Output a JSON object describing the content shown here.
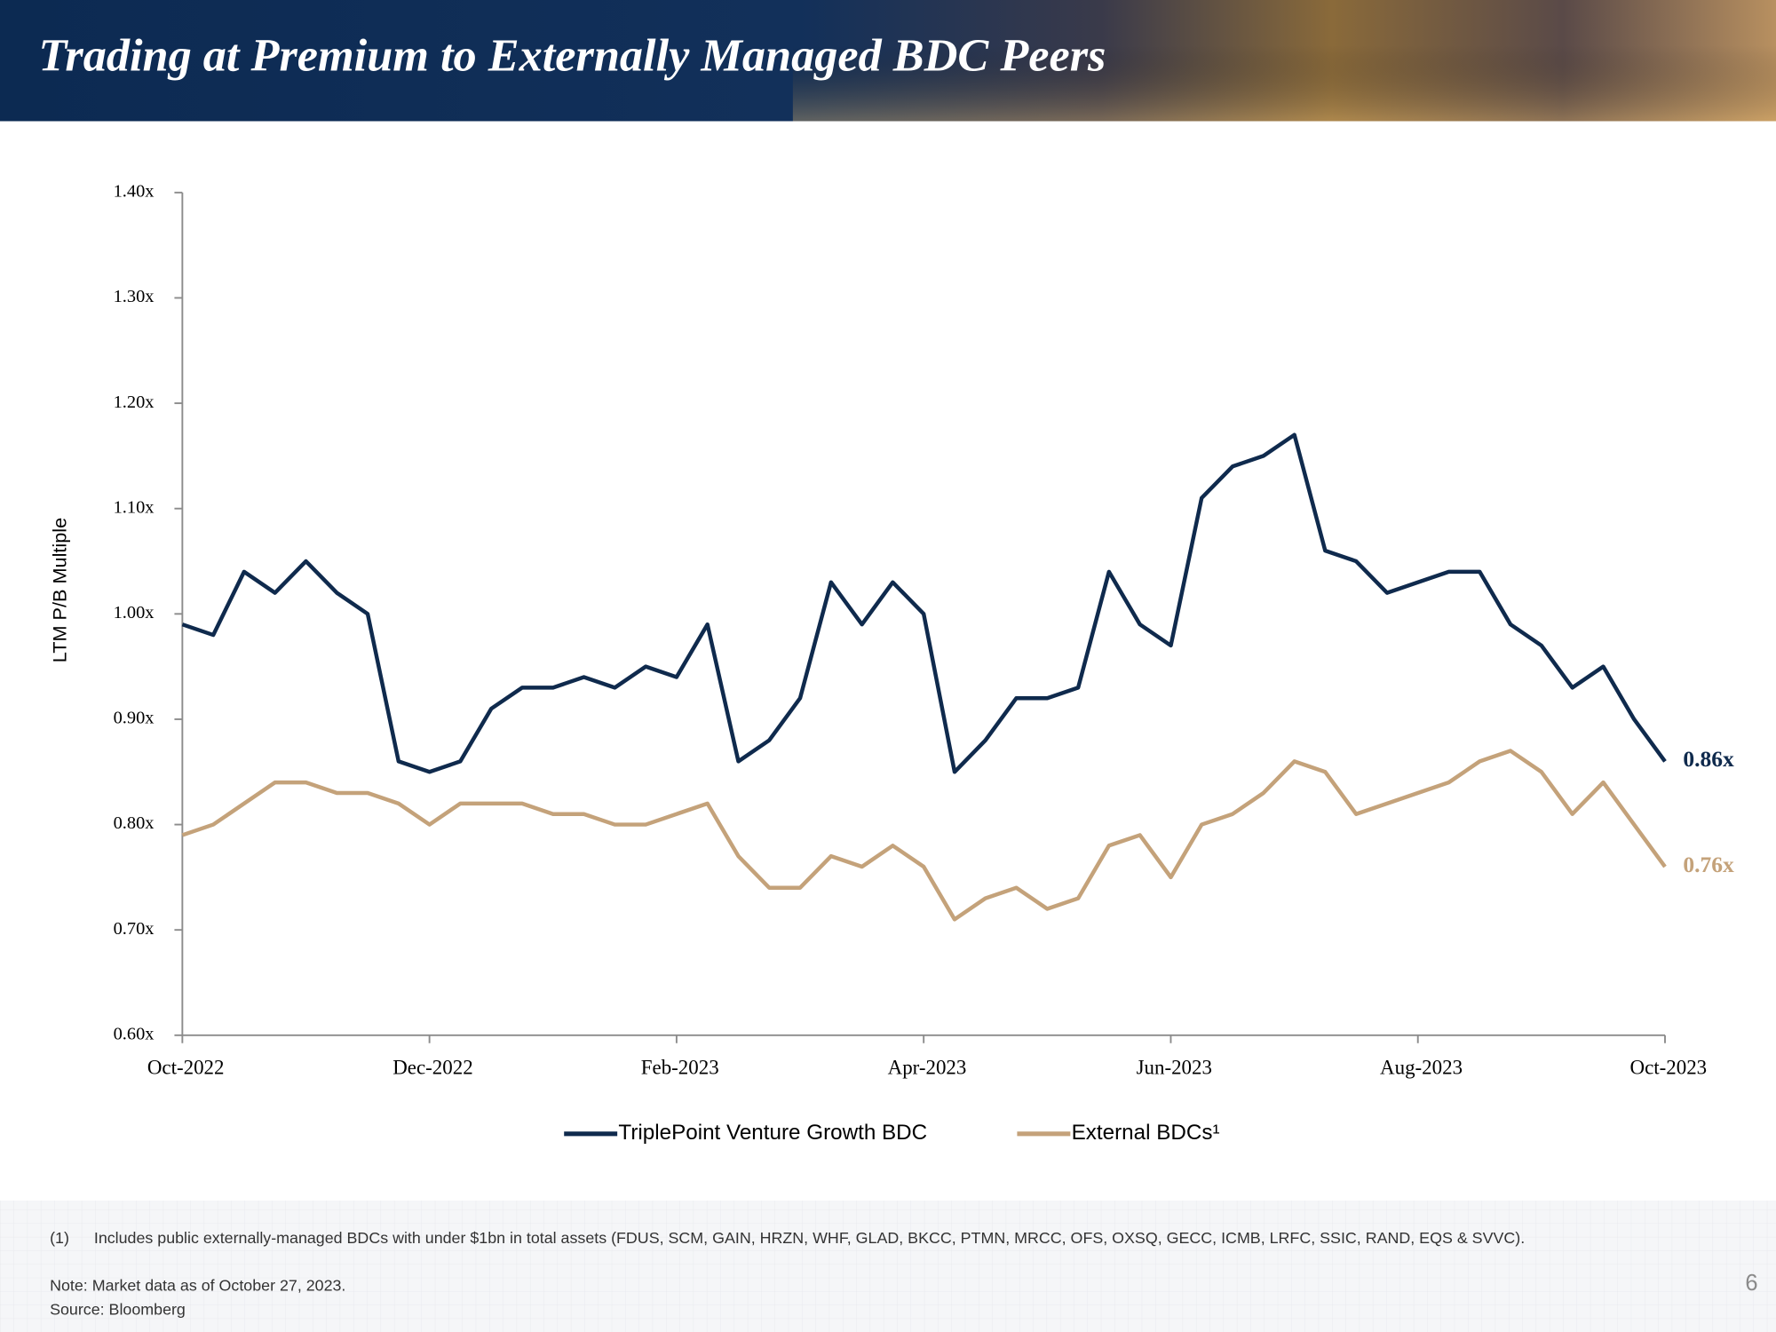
{
  "chart_data": {
    "type": "line",
    "title": "Trading at Premium to Externally Managed BDC Peers",
    "ylabel": "LTM P/B Multiple",
    "categories": [
      "Oct-2022",
      null,
      null,
      null,
      null,
      null,
      null,
      null,
      "Dec-2022",
      null,
      null,
      null,
      null,
      null,
      null,
      null,
      "Feb-2023",
      null,
      null,
      null,
      null,
      null,
      null,
      null,
      "Apr-2023",
      null,
      null,
      null,
      null,
      null,
      null,
      null,
      "Jun-2023",
      null,
      null,
      null,
      null,
      null,
      null,
      null,
      "Aug-2023",
      null,
      null,
      null,
      null,
      null,
      null,
      null,
      "Oct-2023"
    ],
    "series": [
      {
        "name": "TriplePoint Venture Growth BDC",
        "color": "#0f2a4d",
        "values": [
          0.99,
          0.98,
          1.04,
          1.02,
          1.05,
          1.02,
          1.0,
          0.86,
          0.85,
          0.86,
          0.91,
          0.93,
          0.93,
          0.94,
          0.93,
          0.95,
          0.94,
          0.99,
          0.86,
          0.88,
          0.92,
          1.03,
          0.99,
          1.03,
          1.0,
          0.85,
          0.88,
          0.92,
          0.92,
          0.93,
          1.04,
          0.99,
          0.97,
          1.11,
          1.14,
          1.15,
          1.17,
          1.06,
          1.05,
          1.02,
          1.03,
          1.04,
          1.04,
          0.99,
          0.97,
          0.93,
          0.95,
          0.9,
          0.86
        ],
        "value_labels": [
          null,
          null,
          null,
          null,
          null,
          null,
          null,
          null,
          null,
          null,
          null,
          null,
          null,
          null,
          null,
          null,
          null,
          null,
          null,
          null,
          null,
          null,
          null,
          null,
          null,
          null,
          null,
          null,
          null,
          null,
          null,
          null,
          null,
          null,
          null,
          null,
          null,
          null,
          null,
          null,
          null,
          null,
          null,
          null,
          null,
          null,
          null,
          null,
          "0.86x"
        ]
      },
      {
        "name": "External BDCs¹",
        "color": "#c4a27a",
        "values": [
          0.79,
          0.8,
          0.82,
          0.84,
          0.84,
          0.83,
          0.83,
          0.82,
          0.8,
          0.82,
          0.82,
          0.82,
          0.81,
          0.81,
          0.8,
          0.8,
          0.81,
          0.82,
          0.77,
          0.74,
          0.74,
          0.77,
          0.76,
          0.78,
          0.76,
          0.71,
          0.73,
          0.74,
          0.72,
          0.73,
          0.78,
          0.79,
          0.75,
          0.8,
          0.81,
          0.83,
          0.86,
          0.85,
          0.81,
          0.82,
          0.83,
          0.84,
          0.86,
          0.87,
          0.85,
          0.81,
          0.84,
          0.8,
          0.76
        ],
        "value_labels": [
          null,
          null,
          null,
          null,
          null,
          null,
          null,
          null,
          null,
          null,
          null,
          null,
          null,
          null,
          null,
          null,
          null,
          null,
          null,
          null,
          null,
          null,
          null,
          null,
          null,
          null,
          null,
          null,
          null,
          null,
          null,
          null,
          null,
          null,
          null,
          null,
          null,
          null,
          null,
          null,
          null,
          null,
          null,
          null,
          null,
          null,
          null,
          null,
          "0.76x"
        ]
      }
    ],
    "ylim": [
      0.6,
      1.4
    ],
    "yticks": [
      {
        "value": 0.6,
        "label": "0.60x"
      },
      {
        "value": 0.7,
        "label": "0.70x"
      },
      {
        "value": 0.8,
        "label": "0.80x"
      },
      {
        "value": 0.9,
        "label": "0.90x"
      },
      {
        "value": 1.0,
        "label": "1.00x"
      },
      {
        "value": 1.1,
        "label": "1.10x"
      },
      {
        "value": 1.2,
        "label": "1.20x"
      },
      {
        "value": 1.3,
        "label": "1.30x"
      },
      {
        "value": 1.4,
        "label": "1.40x"
      }
    ],
    "grid": false,
    "legend": "bottom"
  },
  "footer": {
    "footnote_marker": "(1)",
    "footnote": "Includes public externally-managed BDCs with under $1bn in total assets (FDUS, SCM, GAIN, HRZN, WHF, GLAD, BKCC, PTMN, MRCC, OFS, OXSQ, GECC, ICMB, LRFC, SSIC, RAND, EQS & SVVC).",
    "note": "Note: Market data as of October 27, 2023.",
    "source": "Source: Bloomberg",
    "page_number": "6"
  }
}
